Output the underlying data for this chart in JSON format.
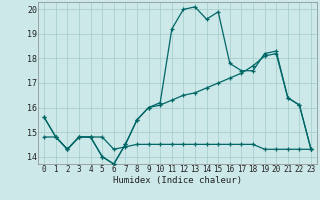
{
  "xlabel": "Humidex (Indice chaleur)",
  "bg_color": "#cce8e8",
  "line_color": "#006666",
  "grid_color": "#aacfcf",
  "xlim": [
    -0.5,
    23.5
  ],
  "ylim": [
    13.7,
    20.3
  ],
  "yticks": [
    14,
    15,
    16,
    17,
    18,
    19,
    20
  ],
  "xticks": [
    0,
    1,
    2,
    3,
    4,
    5,
    6,
    7,
    8,
    9,
    10,
    11,
    12,
    13,
    14,
    15,
    16,
    17,
    18,
    19,
    20,
    21,
    22,
    23
  ],
  "line1": [
    15.6,
    14.8,
    14.3,
    14.8,
    14.8,
    14.0,
    13.7,
    14.5,
    15.5,
    16.0,
    16.2,
    19.2,
    20.0,
    20.1,
    19.6,
    19.9,
    17.8,
    17.5,
    17.5,
    18.2,
    18.3,
    16.4,
    16.1,
    14.3
  ],
  "line2": [
    15.6,
    14.8,
    14.3,
    14.8,
    14.8,
    14.0,
    13.7,
    14.5,
    15.5,
    16.0,
    16.1,
    16.3,
    16.5,
    16.6,
    16.8,
    17.0,
    17.2,
    17.4,
    17.7,
    18.1,
    18.2,
    16.4,
    16.1,
    14.3
  ],
  "line3": [
    14.8,
    14.8,
    14.3,
    14.8,
    14.8,
    14.8,
    14.3,
    14.4,
    14.5,
    14.5,
    14.5,
    14.5,
    14.5,
    14.5,
    14.5,
    14.5,
    14.5,
    14.5,
    14.5,
    14.3,
    14.3,
    14.3,
    14.3,
    14.3
  ]
}
